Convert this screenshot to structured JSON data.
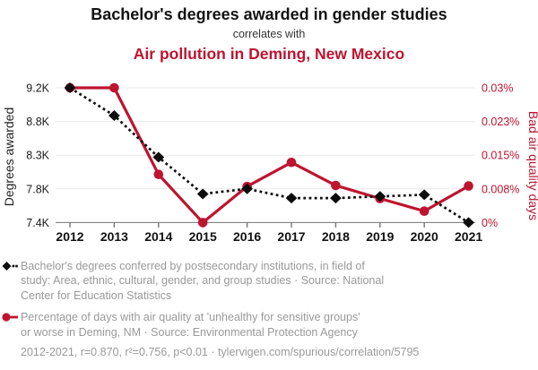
{
  "chart_data": {
    "type": "line",
    "title": "Bachelor's degrees awarded in gender studies",
    "connector": "correlates with",
    "subtitle": "Air pollution in Deming, New Mexico",
    "x": [
      2012,
      2013,
      2014,
      2015,
      2016,
      2017,
      2018,
      2019,
      2020,
      2021
    ],
    "x_tick_labels": [
      "2012",
      "2013",
      "2014",
      "2015",
      "2016",
      "2017",
      "2018",
      "2019",
      "2020",
      "2021"
    ],
    "left_axis": {
      "title": "Degrees awarded",
      "ticks": [
        {
          "label": "9.2K",
          "value": 9200
        },
        {
          "label": "8.8K",
          "value": 8800
        },
        {
          "label": "8.3K",
          "value": 8300
        },
        {
          "label": "7.8K",
          "value": 7800
        },
        {
          "label": "7.4K",
          "value": 7400
        }
      ]
    },
    "right_axis": {
      "title": "Bad air quality days",
      "ticks": [
        {
          "label": "0.03%",
          "value": 0.03
        },
        {
          "label": "0.023%",
          "value": 0.023
        },
        {
          "label": "0.015%",
          "value": 0.015
        },
        {
          "label": "0.008%",
          "value": 0.008
        },
        {
          "label": "0%",
          "value": 0
        }
      ]
    },
    "series": [
      {
        "name": "Percentage of days with air quality at 'unhealthy for sensitive groups' or worse in Deming, NM",
        "axis": "right",
        "color": "#be1430",
        "line_style": "solid",
        "marker": "circle",
        "values": [
          0.03,
          0.03,
          0.011,
          0,
          0.0085,
          0.0135,
          0.0087,
          0.0057,
          0.0027,
          0.0086
        ]
      },
      {
        "name": "Bachelor's degrees conferred by postsecondary institutions, in field of study: Area, ethnic, cultural, gender, and group studies",
        "axis": "left",
        "color": "#0d0d0d",
        "line_style": "dashed",
        "marker": "diamond",
        "values": [
          9200,
          8870,
          8270,
          7740,
          7800,
          7690,
          7690,
          7710,
          7730,
          7400
        ]
      }
    ],
    "legend": [
      {
        "lines": [
          "Bachelor's degrees conferred by postsecondary institutions, in field of",
          "study: Area, ethnic, cultural, gender, and group studies · Source: National",
          "Center for Education Statistics"
        ]
      },
      {
        "lines": [
          "Percentage of days with air quality at 'unhealthy for sensitive groups'",
          "or worse in Deming, NM · Source: Environmental Protection Agency"
        ]
      }
    ],
    "footer": "2012-2021, r=0.870, r²=0.756, p<0.01 · tylervigen.com/spurious/correlation/5795",
    "colors": {
      "accent_red": "#be1430",
      "series_black": "#0d0d0d",
      "legend_gray": "#999999",
      "gridline": "#e9e9e9"
    },
    "grid": true,
    "legend_position": "bottom"
  }
}
